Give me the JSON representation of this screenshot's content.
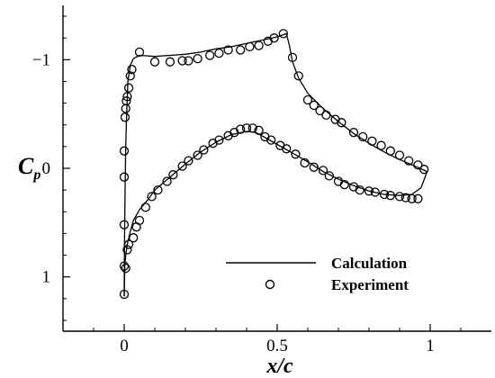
{
  "chart_data": {
    "type": "line",
    "xlabel": "x/c",
    "ylabel": "C",
    "ylabel_sub": "p",
    "xlim": [
      -0.2,
      1.2
    ],
    "ylim": [
      -1.5,
      1.5
    ],
    "y_inverted": true,
    "grid": false,
    "legend_placement": "lower-center",
    "x_ticks": [
      0,
      0.5,
      1
    ],
    "x_tick_labels": [
      "0",
      "0.5",
      "1"
    ],
    "y_ticks": [
      -1,
      0,
      1
    ],
    "y_tick_labels": [
      "−1",
      "0",
      "1"
    ],
    "series": [
      {
        "name": "Calculation",
        "style": "line",
        "color": "#000000",
        "segments": [
          [
            [
              0.0,
              1.18
            ],
            [
              0.001,
              0.7
            ],
            [
              0.003,
              0.2
            ],
            [
              0.005,
              -0.2
            ],
            [
              0.008,
              -0.5
            ],
            [
              0.012,
              -0.8
            ],
            [
              0.02,
              -0.95
            ],
            [
              0.03,
              -1.01
            ],
            [
              0.05,
              -1.04
            ],
            [
              0.1,
              -1.03
            ],
            [
              0.15,
              -1.04
            ],
            [
              0.2,
              -1.05
            ],
            [
              0.25,
              -1.07
            ],
            [
              0.3,
              -1.1
            ],
            [
              0.35,
              -1.12
            ],
            [
              0.4,
              -1.15
            ],
            [
              0.45,
              -1.18
            ],
            [
              0.5,
              -1.21
            ],
            [
              0.53,
              -1.24
            ],
            [
              0.54,
              -1.13
            ],
            [
              0.55,
              -0.98
            ],
            [
              0.57,
              -0.83
            ],
            [
              0.6,
              -0.69
            ],
            [
              0.65,
              -0.55
            ],
            [
              0.7,
              -0.43
            ],
            [
              0.75,
              -0.32
            ],
            [
              0.8,
              -0.23
            ],
            [
              0.85,
              -0.15
            ],
            [
              0.9,
              -0.08
            ],
            [
              0.95,
              -0.02
            ],
            [
              0.99,
              0.03
            ]
          ],
          [
            [
              0.0,
              1.18
            ],
            [
              0.002,
              0.9
            ],
            [
              0.005,
              0.8
            ],
            [
              0.01,
              0.7
            ],
            [
              0.02,
              0.58
            ],
            [
              0.03,
              0.48
            ],
            [
              0.05,
              0.38
            ],
            [
              0.08,
              0.28
            ],
            [
              0.1,
              0.2
            ],
            [
              0.15,
              0.08
            ],
            [
              0.2,
              -0.04
            ],
            [
              0.25,
              -0.15
            ],
            [
              0.3,
              -0.24
            ],
            [
              0.35,
              -0.31
            ],
            [
              0.4,
              -0.34
            ],
            [
              0.43,
              -0.33
            ],
            [
              0.45,
              -0.3
            ],
            [
              0.5,
              -0.22
            ],
            [
              0.55,
              -0.14
            ],
            [
              0.6,
              -0.06
            ],
            [
              0.65,
              0.03
            ],
            [
              0.7,
              0.1
            ],
            [
              0.75,
              0.16
            ],
            [
              0.8,
              0.21
            ],
            [
              0.85,
              0.24
            ],
            [
              0.9,
              0.25
            ],
            [
              0.94,
              0.24
            ],
            [
              0.97,
              0.18
            ],
            [
              0.99,
              0.03
            ]
          ]
        ]
      },
      {
        "name": "Experiment",
        "style": "marker-circle",
        "color": "#000000",
        "points": [
          [
            0.0,
            1.16
          ],
          [
            0.0,
            0.9
          ],
          [
            0.0,
            0.52
          ],
          [
            0.0,
            0.08
          ],
          [
            0.0,
            -0.16
          ],
          [
            0.003,
            -0.47
          ],
          [
            0.005,
            -0.55
          ],
          [
            0.007,
            -0.62
          ],
          [
            0.01,
            -0.66
          ],
          [
            0.015,
            -0.74
          ],
          [
            0.02,
            -0.85
          ],
          [
            0.025,
            -0.91
          ],
          [
            0.05,
            -1.07
          ],
          [
            0.1,
            -0.98
          ],
          [
            0.15,
            -0.98
          ],
          [
            0.19,
            -0.99
          ],
          [
            0.21,
            -0.99
          ],
          [
            0.24,
            -1.01
          ],
          [
            0.28,
            -1.04
          ],
          [
            0.31,
            -1.06
          ],
          [
            0.34,
            -1.09
          ],
          [
            0.38,
            -1.09
          ],
          [
            0.41,
            -1.12
          ],
          [
            0.44,
            -1.13
          ],
          [
            0.47,
            -1.17
          ],
          [
            0.49,
            -1.2
          ],
          [
            0.52,
            -1.24
          ],
          [
            0.55,
            -1.02
          ],
          [
            0.57,
            -0.85
          ],
          [
            0.6,
            -0.63
          ],
          [
            0.62,
            -0.58
          ],
          [
            0.64,
            -0.53
          ],
          [
            0.66,
            -0.49
          ],
          [
            0.69,
            -0.45
          ],
          [
            0.71,
            -0.42
          ],
          [
            0.75,
            -0.33
          ],
          [
            0.78,
            -0.29
          ],
          [
            0.81,
            -0.25
          ],
          [
            0.84,
            -0.21
          ],
          [
            0.87,
            -0.16
          ],
          [
            0.9,
            -0.12
          ],
          [
            0.93,
            -0.07
          ],
          [
            0.96,
            -0.03
          ],
          [
            0.98,
            0.01
          ],
          [
            0.005,
            0.92
          ],
          [
            0.01,
            0.75
          ],
          [
            0.015,
            0.7
          ],
          [
            0.03,
            0.64
          ],
          [
            0.04,
            0.54
          ],
          [
            0.05,
            0.48
          ],
          [
            0.07,
            0.36
          ],
          [
            0.09,
            0.26
          ],
          [
            0.11,
            0.2
          ],
          [
            0.14,
            0.12
          ],
          [
            0.16,
            0.06
          ],
          [
            0.19,
            -0.02
          ],
          [
            0.21,
            -0.07
          ],
          [
            0.24,
            -0.12
          ],
          [
            0.26,
            -0.17
          ],
          [
            0.29,
            -0.23
          ],
          [
            0.31,
            -0.26
          ],
          [
            0.34,
            -0.3
          ],
          [
            0.36,
            -0.33
          ],
          [
            0.38,
            -0.36
          ],
          [
            0.4,
            -0.37
          ],
          [
            0.42,
            -0.37
          ],
          [
            0.44,
            -0.35
          ],
          [
            0.46,
            -0.29
          ],
          [
            0.48,
            -0.26
          ],
          [
            0.51,
            -0.21
          ],
          [
            0.53,
            -0.18
          ],
          [
            0.56,
            -0.13
          ],
          [
            0.59,
            -0.05
          ],
          [
            0.62,
            -0.01
          ],
          [
            0.65,
            0.02
          ],
          [
            0.67,
            0.07
          ],
          [
            0.7,
            0.12
          ],
          [
            0.72,
            0.15
          ],
          [
            0.75,
            0.17
          ],
          [
            0.77,
            0.2
          ],
          [
            0.8,
            0.21
          ],
          [
            0.82,
            0.22
          ],
          [
            0.85,
            0.24
          ],
          [
            0.87,
            0.25
          ],
          [
            0.9,
            0.26
          ],
          [
            0.92,
            0.27
          ],
          [
            0.94,
            0.28
          ],
          [
            0.96,
            0.28
          ]
        ]
      }
    ]
  }
}
